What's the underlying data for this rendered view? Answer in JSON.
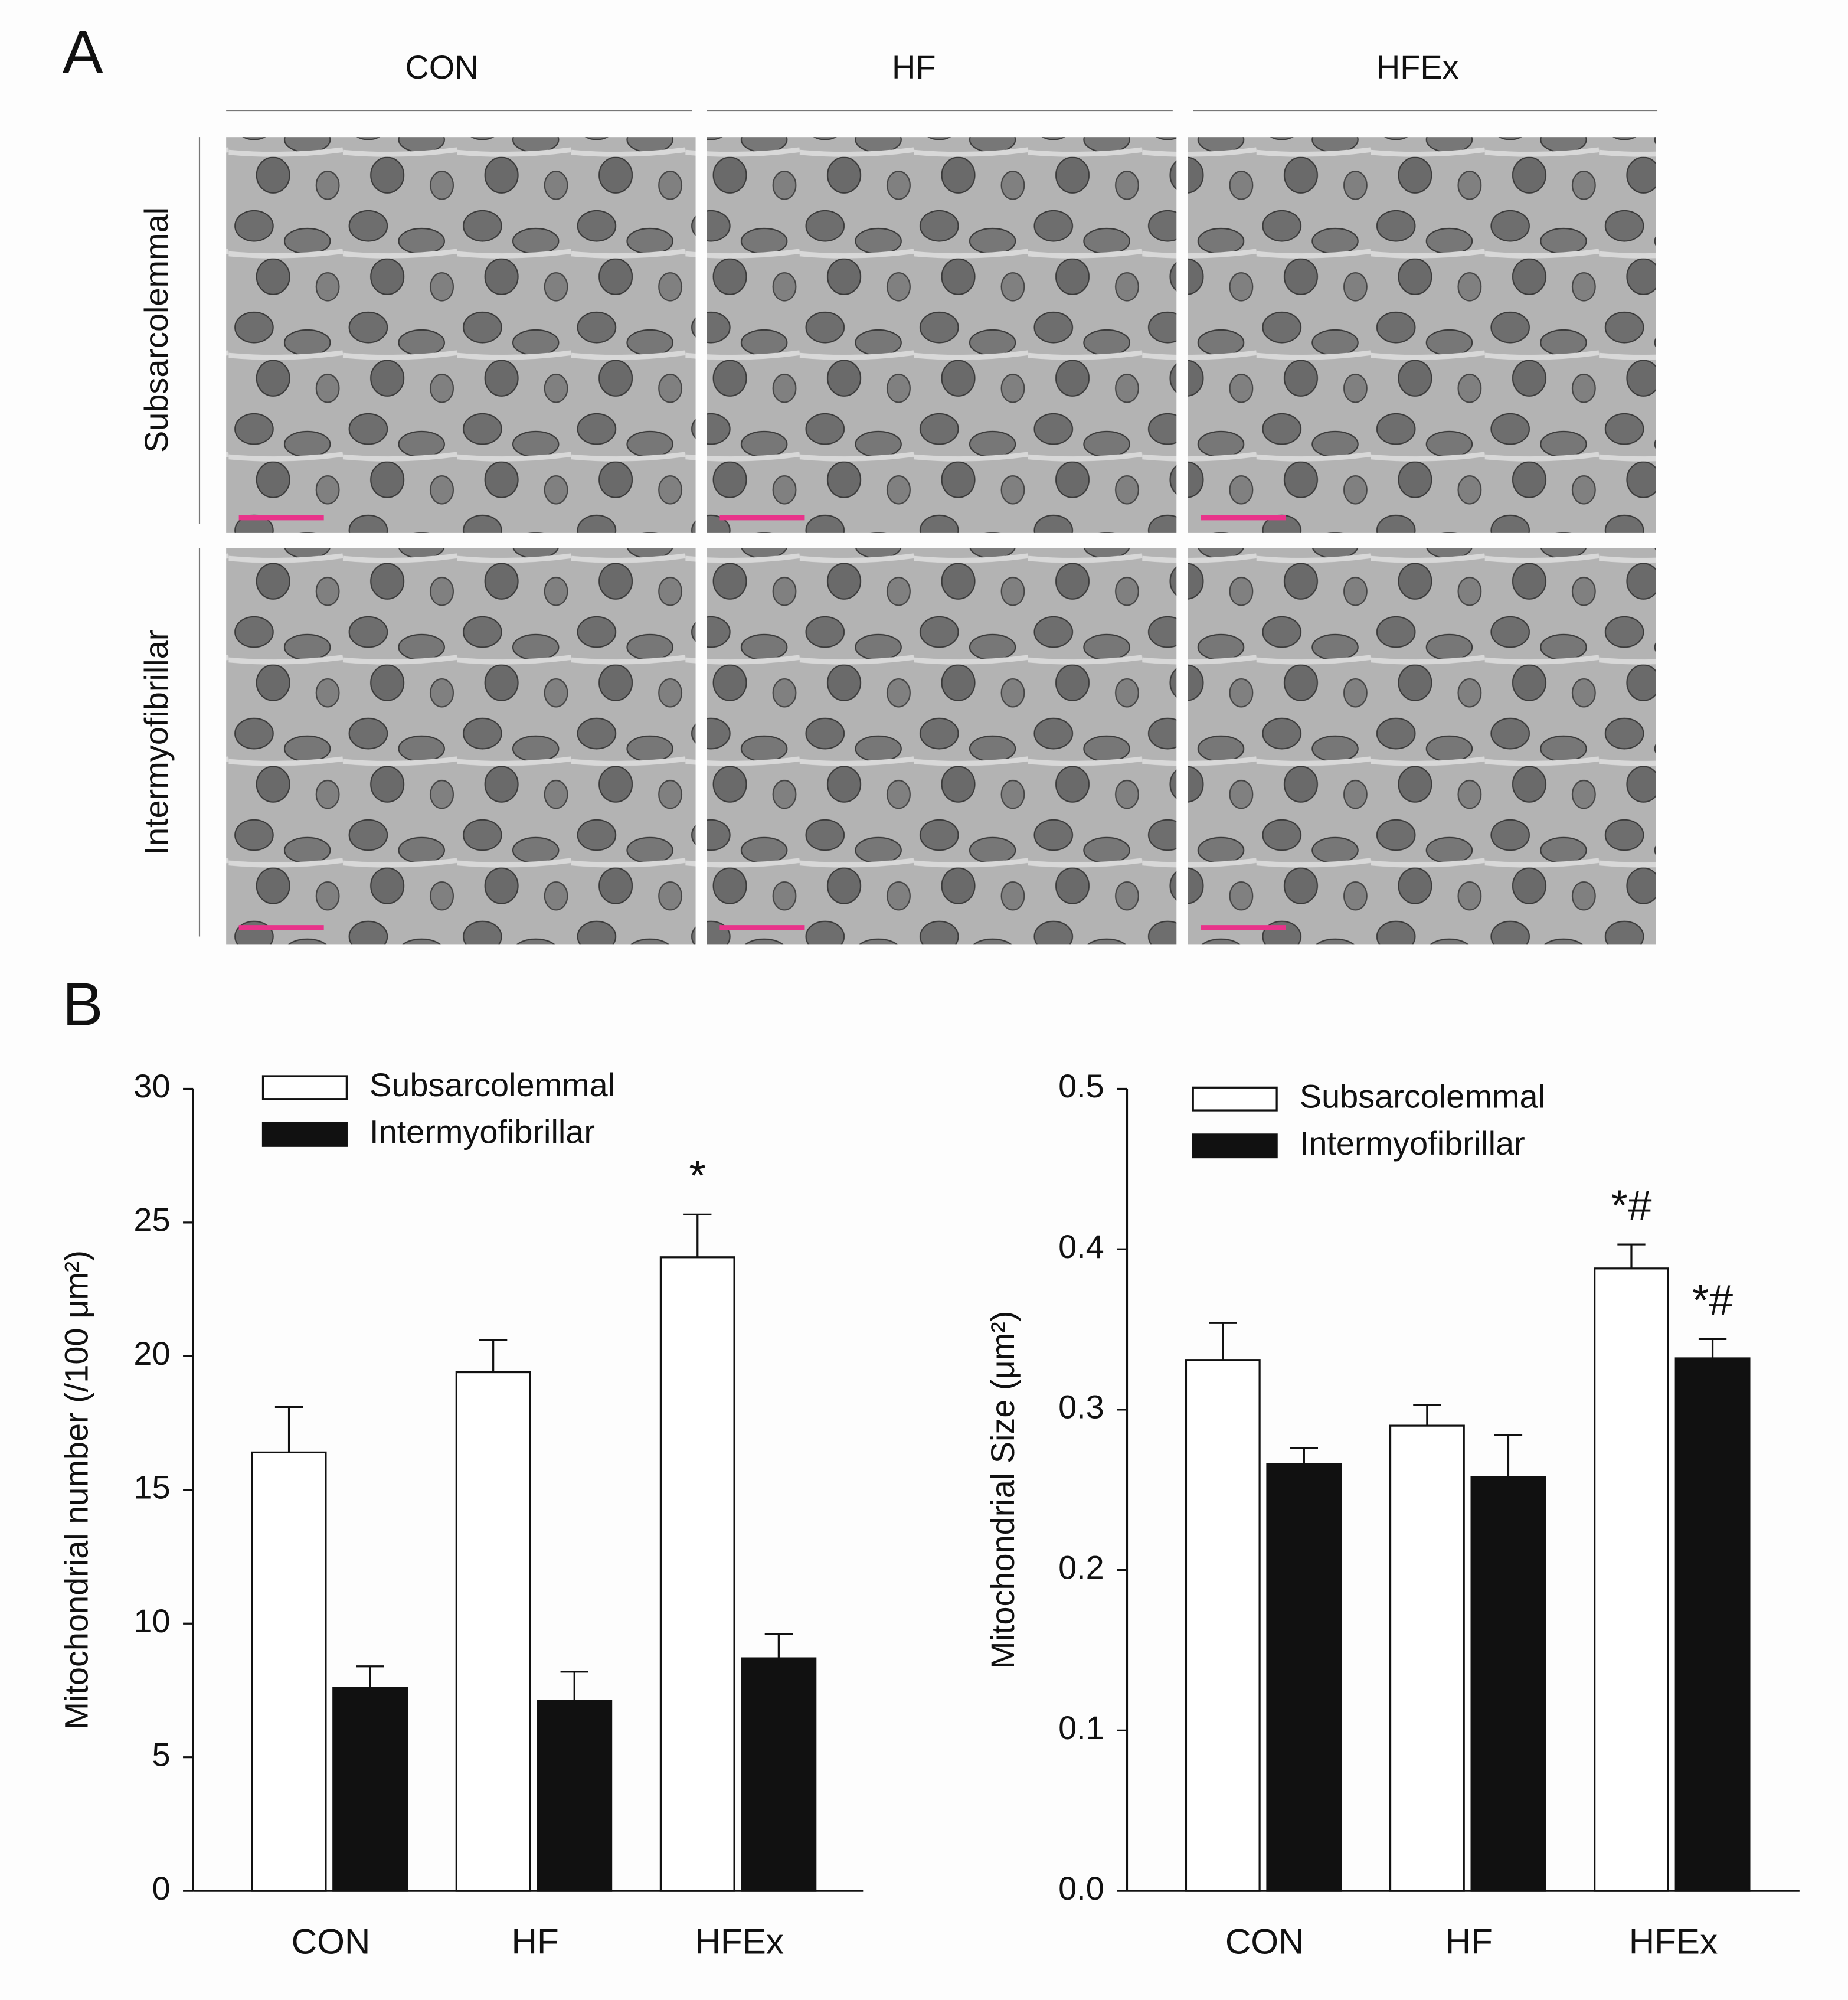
{
  "panel_a": {
    "label": "A",
    "columns": [
      "CON",
      "HF",
      "HFEx"
    ],
    "rows": [
      "Subsarcolemmal",
      "Intermyofibrillar"
    ]
  },
  "panel_b": {
    "label": "B"
  },
  "chart_data": [
    {
      "type": "bar",
      "ylabel": "Mitochondrial number (/100 μm²)",
      "categories": [
        "CON",
        "HF",
        "HFEx"
      ],
      "ylim": [
        0,
        30
      ],
      "yticks": [
        0,
        5,
        10,
        15,
        20,
        25,
        30
      ],
      "series": [
        {
          "name": "Subsarcolemmal",
          "color": "#ffffff",
          "values": [
            16.4,
            19.4,
            23.7
          ],
          "errors": [
            1.7,
            1.2,
            1.6
          ],
          "significance": [
            null,
            null,
            "*"
          ]
        },
        {
          "name": "Intermyofibrillar",
          "color": "#111111",
          "values": [
            7.6,
            7.1,
            8.7
          ],
          "errors": [
            0.8,
            1.1,
            0.9
          ],
          "significance": [
            null,
            null,
            null
          ]
        }
      ]
    },
    {
      "type": "bar",
      "ylabel": "Mitochondrial Size  (μm²)",
      "categories": [
        "CON",
        "HF",
        "HFEx"
      ],
      "ylim": [
        0,
        0.5
      ],
      "yticks": [
        {
          "value": 0,
          "label": "0.0"
        },
        0.1,
        0.2,
        0.3,
        0.4,
        0.5
      ],
      "series": [
        {
          "name": "Subsarcolemmal",
          "color": "#ffffff",
          "values": [
            0.331,
            0.29,
            0.388
          ],
          "errors": [
            0.023,
            0.013,
            0.015
          ],
          "significance": [
            null,
            null,
            "*#"
          ]
        },
        {
          "name": "Intermyofibrillar",
          "color": "#111111",
          "values": [
            0.266,
            0.258,
            0.332
          ],
          "errors": [
            0.01,
            0.026,
            0.012
          ],
          "significance": [
            null,
            null,
            "*#"
          ]
        }
      ]
    }
  ]
}
